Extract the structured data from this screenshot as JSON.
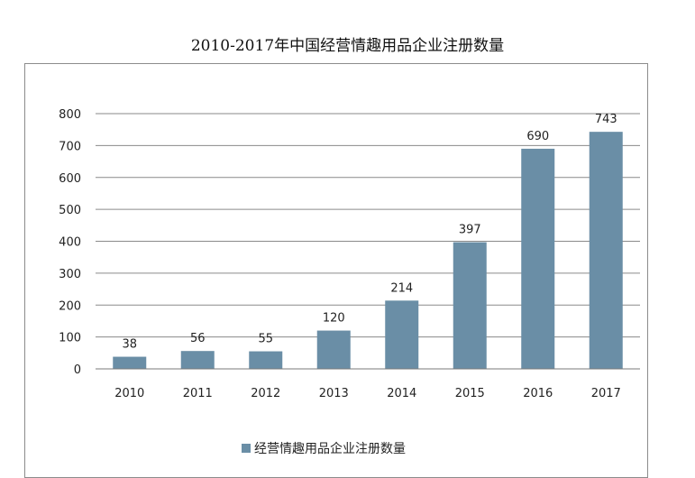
{
  "chart_data": {
    "type": "bar",
    "title": "2010-2017年中国经营情趣用品企业注册数量",
    "categories": [
      "2010",
      "2011",
      "2012",
      "2013",
      "2014",
      "2015",
      "2016",
      "2017"
    ],
    "series": [
      {
        "name": "经营情趣用品企业注册数量",
        "values": [
          38,
          56,
          55,
          120,
          214,
          397,
          690,
          743
        ],
        "color": "#6a8ea6"
      }
    ],
    "yticks": [
      "0",
      "100",
      "200",
      "300",
      "400",
      "500",
      "600",
      "700",
      "800"
    ],
    "ylim": [
      0,
      800
    ],
    "grid": true,
    "legend": "bottom"
  }
}
